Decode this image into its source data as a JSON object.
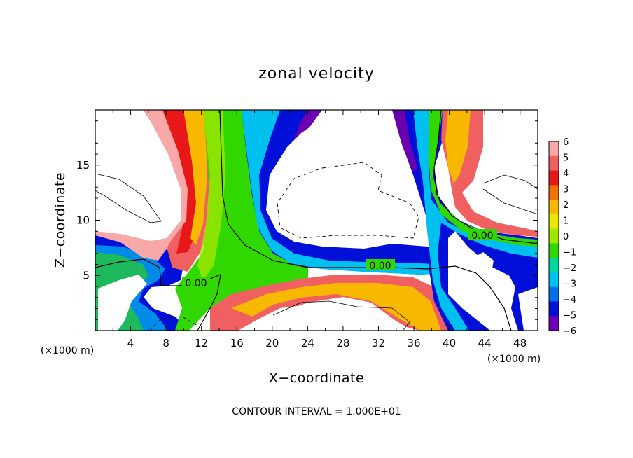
{
  "chart_data": {
    "type": "heatmap",
    "title": "zonal velocity",
    "xlabel": "X−coordinate",
    "ylabel": "Z−coordinate",
    "x_multiplier": "(×1000 m)",
    "z_multiplier": "(×1000 m)",
    "xlim": [
      0,
      50
    ],
    "ylim": [
      0,
      20
    ],
    "x_ticks": [
      4,
      8,
      12,
      16,
      20,
      24,
      28,
      32,
      36,
      40,
      44,
      48
    ],
    "y_ticks": [
      5,
      10,
      15
    ],
    "colorbar": {
      "min": -6,
      "max": 6,
      "labels": [
        "6",
        "5",
        "4",
        "3",
        "2",
        "1",
        "0",
        "−1",
        "−2",
        "−3",
        "−4",
        "−5",
        "−6"
      ],
      "colors": [
        "#f8a8a8",
        "#f06060",
        "#e81818",
        "#f07000",
        "#f8b800",
        "#e8e800",
        "#a0e800",
        "#30d800",
        "#00d8a0",
        "#00c0f0",
        "#0070f0",
        "#0010d8",
        "#7000b8"
      ]
    },
    "contour_labels": [
      "0.00",
      "0.00",
      "0.00"
    ],
    "annotation": "CONTOUR INTERVAL = 1.000E+01"
  }
}
